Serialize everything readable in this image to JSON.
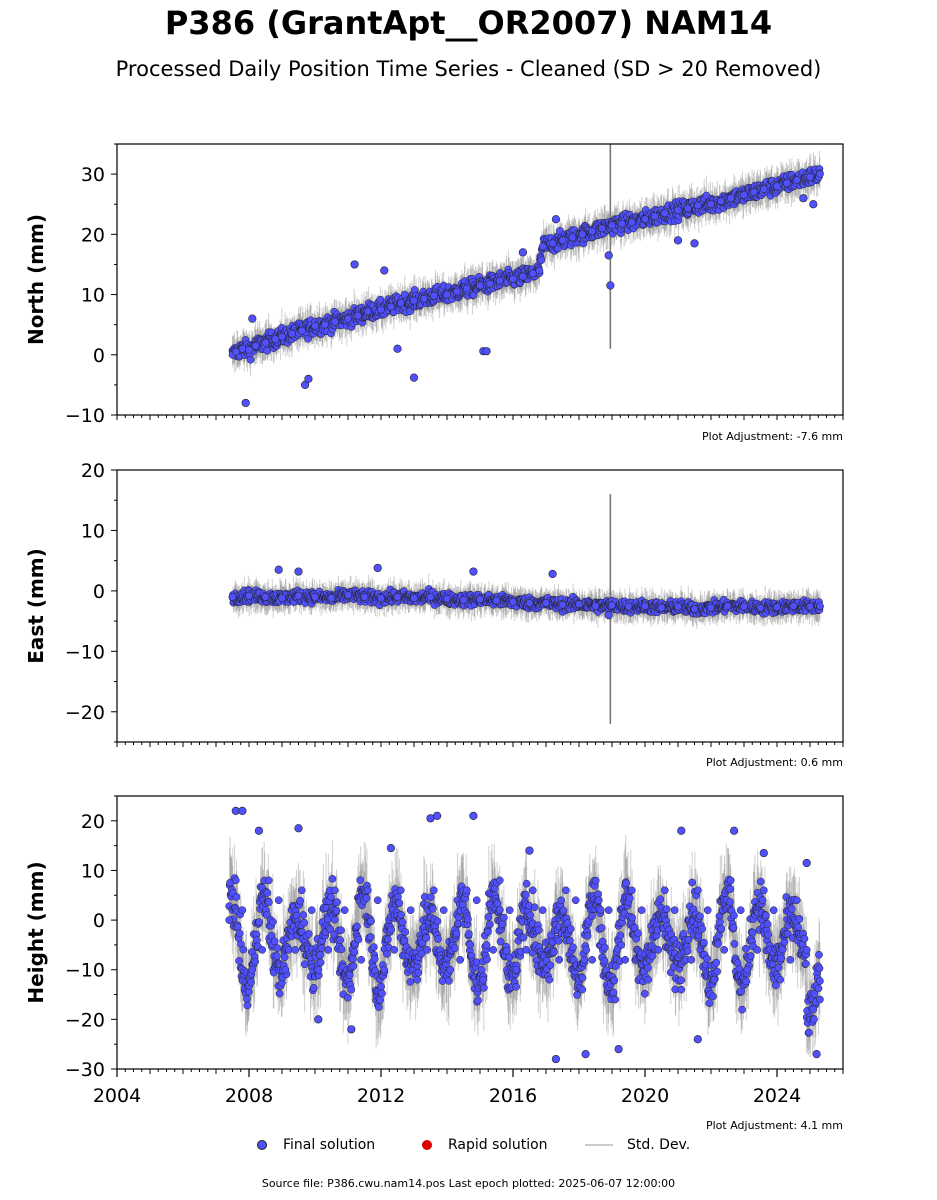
{
  "title": "P386 (GrantApt__OR2007) NAM14",
  "subtitle": "Processed Daily Position Time Series - Cleaned (SD > 20 Removed)",
  "legend": {
    "final": "Final solution",
    "rapid": "Rapid solution",
    "stddev": "Std. Dev."
  },
  "footer": "Source file: P386.cwu.nam14.pos  Last epoch plotted: 2025-06-07 12:00:00",
  "colors": {
    "final": "#5050ff",
    "rapid": "#dd0000",
    "stddev": "#cccccc",
    "marker_edge": "#222222"
  },
  "chart_data": [
    {
      "type": "scatter",
      "name": "north",
      "ylabel": "North (mm)",
      "xlim": [
        2004,
        2026
      ],
      "ylim": [
        -10,
        35
      ],
      "yticks": [
        -10,
        0,
        10,
        20,
        30
      ],
      "adjustment": "Plot Adjustment: -7.6 mm",
      "show_xtick_labels": false,
      "series": [
        {
          "name": "Final solution",
          "x": [
            2007.5,
            2007.6,
            2007.8,
            2008.0,
            2008.2,
            2008.5,
            2008.8,
            2009.0,
            2009.3,
            2009.6,
            2010.0,
            2010.3,
            2010.6,
            2011.0,
            2011.3,
            2011.6,
            2012.0,
            2012.3,
            2012.6,
            2013.0,
            2013.3,
            2013.6,
            2014.0,
            2014.3,
            2014.6,
            2015.0,
            2015.3,
            2015.6,
            2016.0,
            2016.3,
            2016.6,
            2016.8,
            2016.9,
            2017.2,
            2017.5,
            2017.8,
            2018.1,
            2018.4,
            2018.7,
            2019.0,
            2019.3,
            2019.6,
            2020.0,
            2020.3,
            2020.6,
            2021.0,
            2021.3,
            2021.6,
            2022.0,
            2022.3,
            2022.6,
            2023.0,
            2023.3,
            2023.6,
            2024.0,
            2024.3,
            2024.6,
            2025.0,
            2025.3
          ],
          "y": [
            0.0,
            0.5,
            1.0,
            0.8,
            1.5,
            2.0,
            2.6,
            3.0,
            3.5,
            4.0,
            4.8,
            5.0,
            5.5,
            6.0,
            6.5,
            7.2,
            7.5,
            8.0,
            8.6,
            9.0,
            9.3,
            9.8,
            10.0,
            10.5,
            11.0,
            11.5,
            11.8,
            12.3,
            12.6,
            13.0,
            13.5,
            14.0,
            18.0,
            18.5,
            19.0,
            19.5,
            20.0,
            20.5,
            21.0,
            21.5,
            21.8,
            22.0,
            22.5,
            23.0,
            23.5,
            24.0,
            24.3,
            24.8,
            25.0,
            25.5,
            26.0,
            26.5,
            27.0,
            27.5,
            28.0,
            28.5,
            29.0,
            29.5,
            30.0
          ]
        }
      ],
      "outliers": {
        "x": [
          2007.9,
          2008.1,
          2009.7,
          2009.8,
          2011.2,
          2012.1,
          2012.5,
          2013.0,
          2015.1,
          2015.2,
          2016.3,
          2017.3,
          2018.9,
          2018.95,
          2021.0,
          2021.5,
          2024.8,
          2025.1
        ],
        "y": [
          -8.0,
          6.0,
          -5.0,
          -4.0,
          15.0,
          14.0,
          1.0,
          -3.8,
          0.6,
          0.6,
          17.0,
          22.5,
          16.5,
          11.5,
          19.0,
          18.5,
          26.0,
          25.0
        ]
      },
      "spike": {
        "x": 2018.95,
        "y_low": 1.0,
        "y_high": 35.0
      }
    },
    {
      "type": "scatter",
      "name": "east",
      "ylabel": "East (mm)",
      "xlim": [
        2004,
        2026
      ],
      "ylim": [
        -25,
        20
      ],
      "yticks": [
        -20,
        -10,
        0,
        10,
        20
      ],
      "adjustment": "Plot Adjustment: 0.6 mm",
      "show_xtick_labels": false,
      "series": [
        {
          "name": "Final solution",
          "x": [
            2007.5,
            2008.0,
            2008.5,
            2009.0,
            2009.5,
            2010.0,
            2010.5,
            2011.0,
            2011.5,
            2012.0,
            2012.5,
            2013.0,
            2013.5,
            2014.0,
            2014.5,
            2015.0,
            2015.5,
            2016.0,
            2016.5,
            2017.0,
            2017.5,
            2018.0,
            2018.5,
            2019.0,
            2019.5,
            2020.0,
            2020.5,
            2021.0,
            2021.5,
            2022.0,
            2022.5,
            2023.0,
            2023.5,
            2024.0,
            2024.5,
            2025.0,
            2025.3
          ],
          "y": [
            -1.0,
            -0.8,
            -1.0,
            -1.2,
            -0.8,
            -1.0,
            -1.2,
            -0.7,
            -1.0,
            -1.2,
            -1.0,
            -1.2,
            -1.0,
            -1.3,
            -1.5,
            -1.4,
            -1.6,
            -1.8,
            -2.0,
            -2.0,
            -2.3,
            -2.2,
            -2.5,
            -2.4,
            -2.6,
            -2.5,
            -2.8,
            -2.6,
            -3.0,
            -2.8,
            -2.5,
            -2.6,
            -2.8,
            -2.7,
            -2.5,
            -2.6,
            -2.5
          ]
        }
      ],
      "outliers": {
        "x": [
          2008.9,
          2009.5,
          2011.9,
          2014.8,
          2017.2,
          2018.9
        ],
        "y": [
          3.5,
          3.2,
          3.8,
          3.2,
          2.8,
          -4.0
        ]
      },
      "spike": {
        "x": 2018.95,
        "y_low": -22.0,
        "y_high": 16.0
      }
    },
    {
      "type": "scatter",
      "name": "height",
      "ylabel": "Height (mm)",
      "xlim": [
        2004,
        2026
      ],
      "ylim": [
        -30,
        25
      ],
      "yticks": [
        -30,
        -20,
        -10,
        0,
        10,
        20
      ],
      "adjustment": "Plot Adjustment: 4.1 mm",
      "show_xtick_labels": true,
      "xticks": [
        2004,
        2008,
        2012,
        2016,
        2020,
        2024
      ],
      "series": [
        {
          "name": "Final solution",
          "x": [
            2007.4,
            2007.6,
            2007.8,
            2008.1,
            2008.4,
            2008.6,
            2008.9,
            2009.1,
            2009.4,
            2009.6,
            2009.9,
            2010.1,
            2010.4,
            2010.6,
            2010.9,
            2011.1,
            2011.4,
            2011.6,
            2011.9,
            2012.1,
            2012.4,
            2012.6,
            2012.9,
            2013.1,
            2013.4,
            2013.6,
            2013.9,
            2014.1,
            2014.4,
            2014.6,
            2014.9,
            2015.1,
            2015.4,
            2015.6,
            2015.9,
            2016.1,
            2016.4,
            2016.6,
            2016.9,
            2017.1,
            2017.4,
            2017.6,
            2017.9,
            2018.1,
            2018.4,
            2018.6,
            2018.9,
            2019.1,
            2019.4,
            2019.6,
            2019.9,
            2020.1,
            2020.4,
            2020.6,
            2020.9,
            2021.1,
            2021.4,
            2021.6,
            2021.9,
            2022.1,
            2022.4,
            2022.6,
            2022.9,
            2023.1,
            2023.4,
            2023.6,
            2023.9,
            2024.1,
            2024.4,
            2024.6,
            2024.9,
            2025.1,
            2025.3
          ],
          "y": [
            0,
            8,
            2,
            -10,
            -6,
            8,
            4,
            -10,
            -6,
            6,
            2,
            -10,
            -6,
            6,
            2,
            -14,
            -8,
            6,
            4,
            -10,
            -6,
            6,
            2,
            -12,
            -6,
            6,
            2,
            -10,
            -8,
            6,
            4,
            -12,
            -6,
            8,
            2,
            -10,
            -6,
            6,
            2,
            -12,
            -8,
            6,
            4,
            -14,
            -8,
            4,
            2,
            -16,
            -8,
            6,
            2,
            -12,
            -6,
            6,
            2,
            -14,
            -8,
            6,
            2,
            -12,
            -6,
            8,
            2,
            -10,
            -6,
            6,
            2,
            -12,
            -8,
            4,
            -6,
            -18,
            -16
          ]
        }
      ],
      "outliers": {
        "x": [
          2007.6,
          2007.8,
          2008.3,
          2009.5,
          2010.1,
          2011.1,
          2012.3,
          2013.5,
          2013.7,
          2014.8,
          2016.5,
          2017.3,
          2018.2,
          2019.2,
          2021.1,
          2021.6,
          2022.7,
          2023.6,
          2024.9,
          2025.2
        ],
        "y": [
          22,
          22,
          18,
          18.5,
          -20,
          -22,
          14.5,
          20.5,
          21,
          21,
          14,
          -28,
          -27,
          -26,
          18,
          -24,
          18,
          13.5,
          11.5,
          -27
        ]
      }
    }
  ]
}
